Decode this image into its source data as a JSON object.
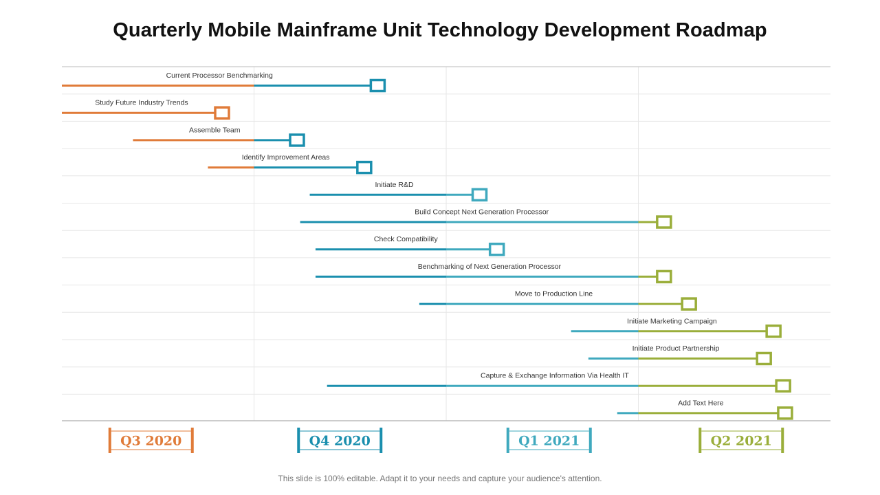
{
  "title": "Quarterly Mobile Mainframe Unit Technology Development Roadmap",
  "footer": "This slide is 100% editable. Adapt it to your needs and capture your audience's attention.",
  "colors": {
    "q3": "#E07B39",
    "q4": "#1A8FAE",
    "q1": "#3FA9BE",
    "q2": "#9AAE3A",
    "grid": "#E6E6E6",
    "axis": "#BBBBBB"
  },
  "chart_data": {
    "type": "gantt",
    "time_unit": "quarter index (0 = start of Q3 2020, 4 = end of Q2 2021)",
    "quarters": [
      {
        "label": "Q3 2020",
        "color_key": "q3"
      },
      {
        "label": "Q4 2020",
        "color_key": "q4"
      },
      {
        "label": "Q1 2021",
        "color_key": "q1"
      },
      {
        "label": "Q2 2021",
        "color_key": "q2"
      }
    ],
    "tasks": [
      {
        "label": "Current Processor Benchmarking",
        "start": 0.0,
        "end": 1.64
      },
      {
        "label": "Study Future Industry Trends",
        "start": 0.0,
        "end": 0.83
      },
      {
        "label": "Assemble Team",
        "start": 0.37,
        "end": 1.22
      },
      {
        "label": "Identify Improvement Areas",
        "start": 0.76,
        "end": 1.57
      },
      {
        "label": "Initiate  R&D",
        "start": 1.29,
        "end": 2.17
      },
      {
        "label": "Build Concept Next Generation Processor",
        "start": 1.24,
        "end": 3.13
      },
      {
        "label": "Check Compatibility",
        "start": 1.32,
        "end": 2.26
      },
      {
        "label": "Benchmarking of Next Generation Processor",
        "start": 1.32,
        "end": 3.13
      },
      {
        "label": "Move to Production Line",
        "start": 1.86,
        "end": 3.26
      },
      {
        "label": "Initiate  Marketing Campaign",
        "start": 2.65,
        "end": 3.7
      },
      {
        "label": "Initiate  Product Partnership",
        "start": 2.74,
        "end": 3.65
      },
      {
        "label": "Capture & Exchange Information  Via Health  IT",
        "start": 1.38,
        "end": 3.75
      },
      {
        "label": "Add Text Here",
        "start": 2.89,
        "end": 3.76
      }
    ]
  }
}
